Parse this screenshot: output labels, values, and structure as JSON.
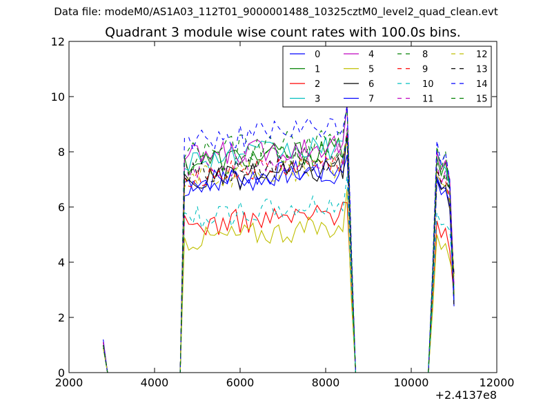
{
  "suptitle": "Data file: modeM0/AS1A03_112T01_9000001488_10325cztM0_level2_quad_clean.evt",
  "chart_data": {
    "type": "line",
    "title": "Quadrant 3 module wise count rates with 100.0s bins.",
    "xlabel": "",
    "ylabel": "",
    "x_offset_label": "+2.4137e8",
    "xlim": [
      2000,
      12000
    ],
    "ylim": [
      0,
      12
    ],
    "xticks": [
      2000,
      4000,
      6000,
      8000,
      10000,
      12000
    ],
    "yticks": [
      0,
      2,
      4,
      6,
      8,
      10,
      12
    ],
    "grid": false,
    "legend": {
      "placement": "top-right",
      "columns": 4
    },
    "series": [
      {
        "name": "0",
        "color": "#0000ff",
        "dash": "solid",
        "seg_a_start": 1.2,
        "plateau_a": 6.9,
        "seg_b_start": 7.1
      },
      {
        "name": "1",
        "color": "#008000",
        "dash": "solid",
        "seg_a_start": 1.0,
        "plateau_a": 7.6,
        "seg_b_start": 7.8
      },
      {
        "name": "2",
        "color": "#ff0000",
        "dash": "solid",
        "seg_a_start": 1.1,
        "plateau_a": 5.3,
        "seg_b_start": 5.5
      },
      {
        "name": "3",
        "color": "#00bfbf",
        "dash": "solid",
        "seg_a_start": 0.9,
        "plateau_a": 7.7,
        "seg_b_start": 8.0
      },
      {
        "name": "4",
        "color": "#bf00bf",
        "dash": "solid",
        "seg_a_start": 1.1,
        "plateau_a": 7.8,
        "seg_b_start": 8.0
      },
      {
        "name": "5",
        "color": "#bfbf00",
        "dash": "solid",
        "seg_a_start": 0.9,
        "plateau_a": 4.8,
        "seg_b_start": 5.0
      },
      {
        "name": "6",
        "color": "#000000",
        "dash": "solid",
        "seg_a_start": 1.0,
        "plateau_a": 6.9,
        "seg_b_start": 7.0
      },
      {
        "name": "7",
        "color": "#0000ff",
        "dash": "solid",
        "seg_a_start": 1.0,
        "plateau_a": 6.8,
        "seg_b_start": 7.0
      },
      {
        "name": "8",
        "color": "#008000",
        "dash": "dashed",
        "seg_a_start": 1.0,
        "plateau_a": 8.0,
        "seg_b_start": 8.2
      },
      {
        "name": "9",
        "color": "#ff0000",
        "dash": "dashed",
        "seg_a_start": 1.0,
        "plateau_a": 7.1,
        "seg_b_start": 7.3
      },
      {
        "name": "10",
        "color": "#00bfbf",
        "dash": "dashed",
        "seg_a_start": 0.9,
        "plateau_a": 5.6,
        "seg_b_start": 5.8
      },
      {
        "name": "11",
        "color": "#bf00bf",
        "dash": "dashed",
        "seg_a_start": 1.0,
        "plateau_a": 7.4,
        "seg_b_start": 7.6
      },
      {
        "name": "12",
        "color": "#bfbf00",
        "dash": "dashed",
        "seg_a_start": 0.9,
        "plateau_a": 7.0,
        "seg_b_start": 7.2
      },
      {
        "name": "13",
        "color": "#000000",
        "dash": "dashed",
        "seg_a_start": 1.0,
        "plateau_a": 7.2,
        "seg_b_start": 7.4
      },
      {
        "name": "14",
        "color": "#0000ff",
        "dash": "dashed",
        "seg_a_start": 1.0,
        "plateau_a": 8.4,
        "seg_b_start": 8.4
      },
      {
        "name": "15",
        "color": "#008000",
        "dash": "dashed",
        "seg_a_start": 1.0,
        "plateau_a": 7.5,
        "seg_b_start": 7.6
      }
    ]
  }
}
